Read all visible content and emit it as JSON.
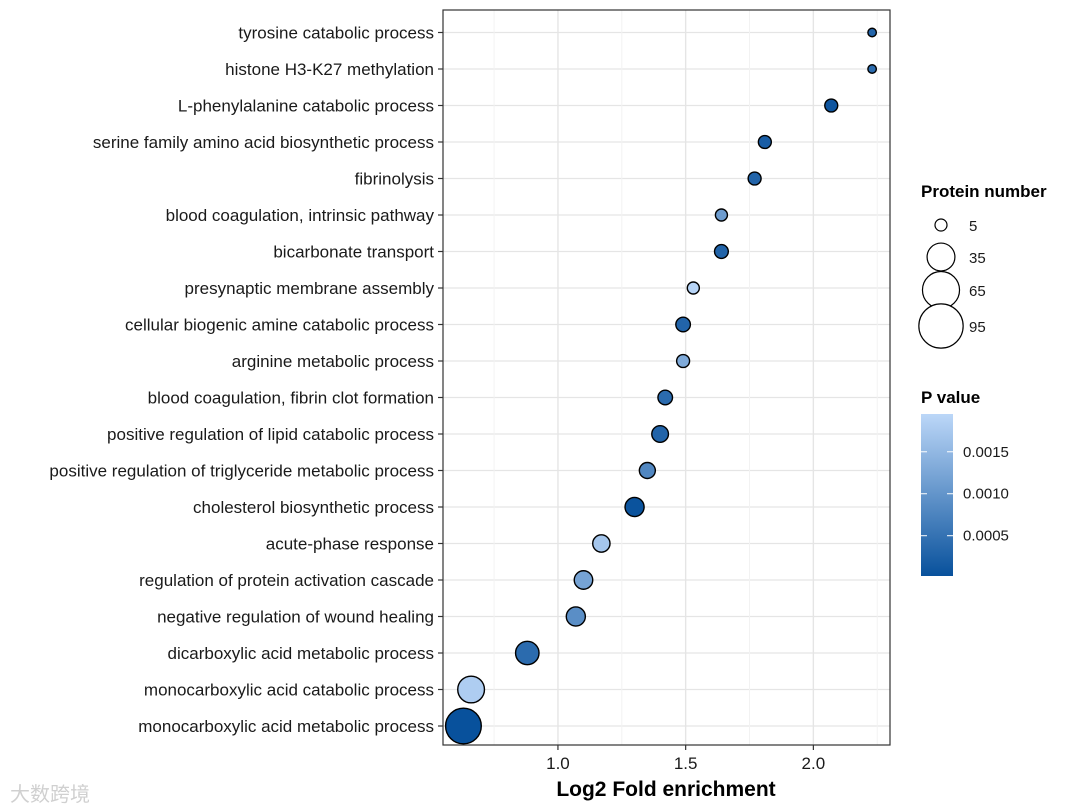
{
  "chart_data": {
    "type": "scatter",
    "title": "",
    "xlabel": "Log2 Fold enrichment",
    "ylabel": "",
    "xlim": [
      0.55,
      2.3
    ],
    "xticks": [
      1.0,
      1.5,
      2.0
    ],
    "xtick_labels": [
      "1.0",
      "1.5",
      "2.0"
    ],
    "grid": true,
    "categories": [
      "tyrosine catabolic process",
      "histone H3-K27 methylation",
      "L-phenylalanine catabolic process",
      "serine family amino acid biosynthetic process",
      "fibrinolysis",
      "blood coagulation, intrinsic pathway",
      "bicarbonate transport",
      "presynaptic membrane assembly",
      "cellular biogenic amine catabolic process",
      "arginine metabolic process",
      "blood coagulation, fibrin clot formation",
      "positive regulation of lipid catabolic process",
      "positive regulation of triglyceride metabolic process",
      "cholesterol biosynthetic process",
      "acute-phase response",
      "regulation of protein activation cascade",
      "negative regulation of wound healing",
      "dicarboxylic acid metabolic process",
      "monocarboxylic acid catabolic process",
      "monocarboxylic acid metabolic process"
    ],
    "x": [
      2.23,
      2.23,
      2.07,
      1.81,
      1.77,
      1.64,
      1.64,
      1.53,
      1.49,
      1.49,
      1.42,
      1.4,
      1.35,
      1.3,
      1.17,
      1.1,
      1.07,
      0.88,
      0.66,
      0.63
    ],
    "protein_number": [
      2,
      2,
      6,
      6,
      6,
      5,
      7,
      5,
      8,
      6,
      8,
      11,
      10,
      15,
      12,
      14,
      15,
      24,
      32,
      60
    ],
    "p_value": [
      0.0003,
      0.0004,
      8e-05,
      0.0002,
      0.0003,
      0.0011,
      0.0003,
      0.0019,
      0.0003,
      0.0013,
      0.0004,
      0.0003,
      0.0008,
      5e-05,
      0.0017,
      0.0012,
      0.0009,
      0.0004,
      0.0018,
      2e-05
    ],
    "size_legend": {
      "title": "Protein number",
      "values": [
        5,
        35,
        65,
        95
      ],
      "labels": [
        "5",
        "35",
        "65",
        "95"
      ]
    },
    "color_legend": {
      "title": "P value",
      "ticks": [
        0.0015,
        0.001,
        0.0005
      ],
      "tick_labels": [
        "0.0015",
        "0.0010",
        "0.0005"
      ],
      "range": [
        2e-05,
        0.00195
      ],
      "color_low": "#08519c",
      "color_high": "#bcd7f8"
    },
    "legend_position": "right"
  },
  "watermark": "大数跨境",
  "colors": {
    "panel_border": "#333333",
    "grid": "#e5e5e5",
    "point_stroke": "#000000"
  }
}
